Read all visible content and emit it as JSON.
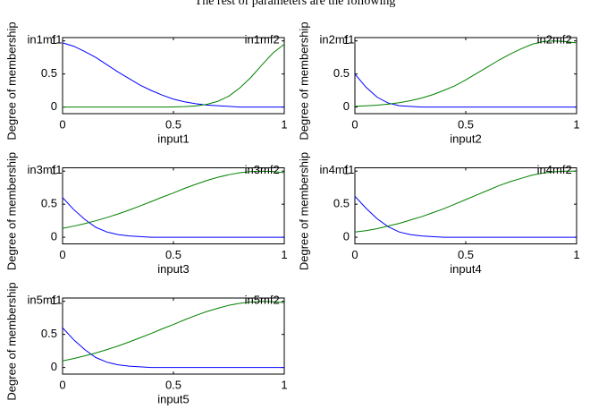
{
  "caption": "The rest of parameters are the following",
  "chart_data": [
    {
      "type": "line",
      "xlabel": "input1",
      "ylabel": "Degree of membership",
      "x": [
        0,
        0.05,
        0.1,
        0.15,
        0.2,
        0.25,
        0.3,
        0.35,
        0.4,
        0.45,
        0.5,
        0.55,
        0.6,
        0.65,
        0.7,
        0.75,
        0.8,
        0.85,
        0.9,
        0.95,
        1
      ],
      "series": [
        {
          "name": "in1mf1",
          "color": "#0000ff",
          "values": [
            0.97,
            0.92,
            0.84,
            0.75,
            0.64,
            0.53,
            0.43,
            0.33,
            0.25,
            0.18,
            0.12,
            0.08,
            0.05,
            0.03,
            0.02,
            0.01,
            0,
            0,
            0,
            0,
            0
          ]
        },
        {
          "name": "in1mf2",
          "color": "#008000",
          "values": [
            0,
            0,
            0,
            0,
            0,
            0,
            0,
            0,
            0,
            0,
            0.002,
            0.007,
            0.017,
            0.041,
            0.086,
            0.165,
            0.29,
            0.45,
            0.64,
            0.82,
            0.95
          ]
        }
      ],
      "xlim": [
        0,
        1
      ],
      "ylim": [
        -0.1,
        1.05
      ],
      "xticks": [
        0,
        0.5,
        1
      ],
      "yticks": [
        0,
        0.5,
        1
      ]
    },
    {
      "type": "line",
      "xlabel": "input2",
      "ylabel": "Degree of membership",
      "x": [
        0,
        0.05,
        0.1,
        0.15,
        0.2,
        0.25,
        0.3,
        0.35,
        0.4,
        0.45,
        0.5,
        0.55,
        0.6,
        0.65,
        0.7,
        0.75,
        0.8,
        0.85,
        0.9,
        0.95,
        1
      ],
      "series": [
        {
          "name": "in2mf1",
          "color": "#0000ff",
          "values": [
            0.5,
            0.3,
            0.15,
            0.06,
            0.02,
            0.01,
            0,
            0,
            0,
            0,
            0,
            0,
            0,
            0,
            0,
            0,
            0,
            0,
            0,
            0,
            0
          ]
        },
        {
          "name": "in2mf2",
          "color": "#008000",
          "values": [
            0.011,
            0.018,
            0.028,
            0.044,
            0.066,
            0.096,
            0.135,
            0.186,
            0.25,
            0.32,
            0.41,
            0.51,
            0.61,
            0.71,
            0.8,
            0.88,
            0.95,
            0.99,
            1,
            0.99,
            0.97
          ]
        }
      ],
      "xlim": [
        0,
        1
      ],
      "ylim": [
        -0.1,
        1.05
      ],
      "xticks": [
        0,
        0.5,
        1
      ],
      "yticks": [
        0,
        0.5,
        1
      ]
    },
    {
      "type": "line",
      "xlabel": "input3",
      "ylabel": "Degree of membership",
      "x": [
        0,
        0.05,
        0.1,
        0.15,
        0.2,
        0.25,
        0.3,
        0.35,
        0.4,
        0.45,
        0.5,
        0.55,
        0.6,
        0.65,
        0.7,
        0.75,
        0.8,
        0.85,
        0.9,
        0.95,
        1
      ],
      "series": [
        {
          "name": "in3mf1",
          "color": "#0000ff",
          "values": [
            0.6,
            0.42,
            0.27,
            0.15,
            0.08,
            0.04,
            0.02,
            0.01,
            0,
            0,
            0,
            0,
            0,
            0,
            0,
            0,
            0,
            0,
            0,
            0,
            0
          ]
        },
        {
          "name": "in3mf2",
          "color": "#008000",
          "values": [
            0.135,
            0.168,
            0.206,
            0.249,
            0.298,
            0.352,
            0.411,
            0.474,
            0.539,
            0.607,
            0.67,
            0.739,
            0.8,
            0.857,
            0.906,
            0.946,
            0.976,
            0.994,
            1,
            0.994,
            0.976
          ]
        }
      ],
      "xlim": [
        0,
        1
      ],
      "ylim": [
        -0.1,
        1.05
      ],
      "xticks": [
        0,
        0.5,
        1
      ],
      "yticks": [
        0,
        0.5,
        1
      ]
    },
    {
      "type": "line",
      "xlabel": "input4",
      "ylabel": "Degree of membership",
      "x": [
        0,
        0.05,
        0.1,
        0.15,
        0.2,
        0.25,
        0.3,
        0.35,
        0.4,
        0.45,
        0.5,
        0.55,
        0.6,
        0.65,
        0.7,
        0.75,
        0.8,
        0.85,
        0.9,
        0.95,
        1
      ],
      "series": [
        {
          "name": "in4mf1",
          "color": "#0000ff",
          "values": [
            0.62,
            0.44,
            0.28,
            0.16,
            0.08,
            0.04,
            0.02,
            0.01,
            0,
            0,
            0,
            0,
            0,
            0,
            0,
            0,
            0,
            0,
            0,
            0,
            0
          ]
        },
        {
          "name": "in4mf2",
          "color": "#008000",
          "values": [
            0.08,
            0.1,
            0.13,
            0.17,
            0.21,
            0.26,
            0.31,
            0.37,
            0.43,
            0.5,
            0.57,
            0.64,
            0.71,
            0.78,
            0.84,
            0.89,
            0.94,
            0.97,
            0.99,
            1,
            1
          ]
        }
      ],
      "xlim": [
        0,
        1
      ],
      "ylim": [
        -0.1,
        1.05
      ],
      "xticks": [
        0,
        0.5,
        1
      ],
      "yticks": [
        0,
        0.5,
        1
      ]
    },
    {
      "type": "line",
      "xlabel": "input5",
      "ylabel": "Degree of membership",
      "x": [
        0,
        0.05,
        0.1,
        0.15,
        0.2,
        0.25,
        0.3,
        0.35,
        0.4,
        0.45,
        0.5,
        0.55,
        0.6,
        0.65,
        0.7,
        0.75,
        0.8,
        0.85,
        0.9,
        0.95,
        1
      ],
      "series": [
        {
          "name": "in5mf1",
          "color": "#0000ff",
          "values": [
            0.6,
            0.42,
            0.27,
            0.15,
            0.08,
            0.04,
            0.02,
            0.01,
            0,
            0,
            0,
            0,
            0,
            0,
            0,
            0,
            0,
            0,
            0,
            0,
            0
          ]
        },
        {
          "name": "in5mf2",
          "color": "#008000",
          "values": [
            0.1,
            0.135,
            0.175,
            0.22,
            0.27,
            0.325,
            0.385,
            0.45,
            0.515,
            0.585,
            0.65,
            0.72,
            0.785,
            0.845,
            0.895,
            0.94,
            0.97,
            0.99,
            1,
            0.995,
            0.98
          ]
        }
      ],
      "xlim": [
        0,
        1
      ],
      "ylim": [
        -0.1,
        1.05
      ],
      "xticks": [
        0,
        0.5,
        1
      ],
      "yticks": [
        0,
        0.5,
        1
      ]
    }
  ]
}
